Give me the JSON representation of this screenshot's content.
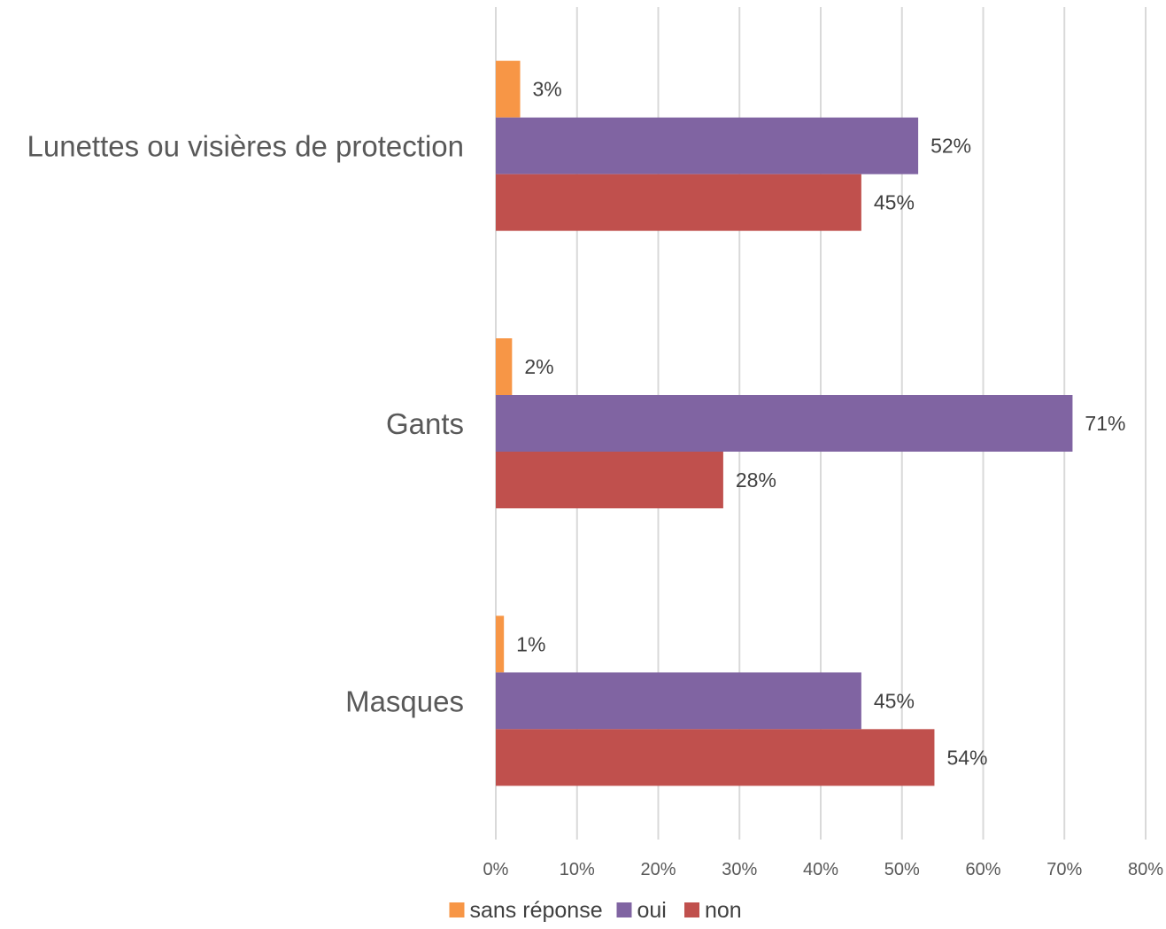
{
  "chart_data": {
    "type": "bar",
    "orientation": "horizontal",
    "categories": [
      "Lunettes ou visières de protection",
      "Gants",
      "Masques"
    ],
    "series": [
      {
        "name": "sans réponse",
        "color": "#f79646",
        "values": [
          3,
          2,
          1
        ],
        "labels": [
          "3%",
          "2%",
          "1%"
        ]
      },
      {
        "name": "oui",
        "color": "#8064a2",
        "values": [
          52,
          71,
          45
        ],
        "labels": [
          "52%",
          "71%",
          "45%"
        ]
      },
      {
        "name": "non",
        "color": "#c0504d",
        "values": [
          45,
          28,
          54
        ],
        "labels": [
          "45%",
          "28%",
          "54%"
        ]
      }
    ],
    "xlim": [
      0,
      80
    ],
    "xticks": [
      "0%",
      "10%",
      "20%",
      "30%",
      "40%",
      "50%",
      "60%",
      "70%",
      "80%"
    ],
    "grid": true,
    "legend": "bottom",
    "title": "",
    "xlabel": "",
    "ylabel": ""
  }
}
